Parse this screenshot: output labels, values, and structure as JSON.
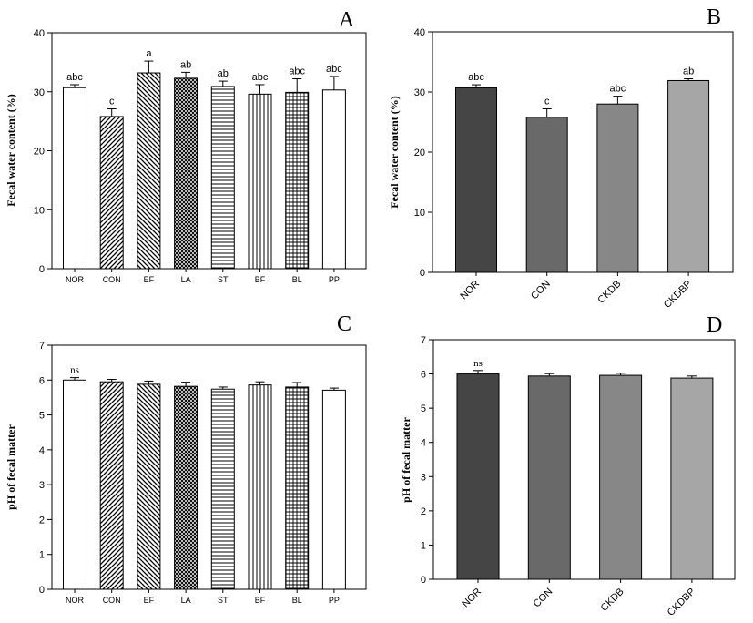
{
  "chart_data": [
    {
      "panel": "A",
      "type": "bar",
      "ylabel": "Fecal water content (%)",
      "ylim": [
        0,
        40
      ],
      "yticks": [
        0,
        10,
        20,
        30,
        40
      ],
      "categories": [
        "NOR",
        "CON",
        "EF",
        "LA",
        "ST",
        "BF",
        "BL",
        "PP"
      ],
      "values": [
        30.7,
        25.8,
        33.2,
        32.3,
        30.9,
        29.6,
        29.9,
        30.3
      ],
      "errors": [
        0.5,
        1.3,
        2.0,
        1.0,
        0.9,
        1.6,
        2.3,
        2.3
      ],
      "labels": [
        "abc",
        "c",
        "a",
        "ab",
        "ab",
        "abc",
        "abc",
        "abc"
      ],
      "patterns": [
        "white",
        "diag-right",
        "diag-left",
        "crosshatch",
        "horizontal",
        "vertical",
        "grid",
        "white"
      ]
    },
    {
      "panel": "B",
      "type": "bar",
      "ylabel": "Fecal water content (%)",
      "ylim": [
        0,
        40
      ],
      "yticks": [
        0,
        10,
        20,
        30,
        40
      ],
      "categories": [
        "NOR",
        "CON",
        "CKDB",
        "CKDBP"
      ],
      "values": [
        30.7,
        25.8,
        28.0,
        31.9
      ],
      "errors": [
        0.5,
        1.4,
        1.3,
        0.3
      ],
      "labels": [
        "abc",
        "c",
        "abc",
        "ab"
      ],
      "colors": [
        "#454545",
        "#696969",
        "#878787",
        "#a6a6a6"
      ]
    },
    {
      "panel": "C",
      "type": "bar",
      "ylabel": "pH of fecal matter",
      "ylim": [
        0,
        7
      ],
      "yticks": [
        0,
        1,
        2,
        3,
        4,
        5,
        6,
        7
      ],
      "categories": [
        "NOR",
        "CON",
        "EF",
        "LA",
        "ST",
        "BF",
        "BL",
        "PP"
      ],
      "values": [
        6.0,
        5.95,
        5.88,
        5.82,
        5.74,
        5.86,
        5.8,
        5.71
      ],
      "errors": [
        0.07,
        0.07,
        0.09,
        0.12,
        0.06,
        0.09,
        0.13,
        0.06
      ],
      "labels": [
        "ns",
        "",
        "",
        "",
        "",
        "",
        "",
        ""
      ],
      "patterns": [
        "white",
        "diag-right",
        "diag-left",
        "crosshatch",
        "horizontal",
        "vertical",
        "grid",
        "white"
      ]
    },
    {
      "panel": "D",
      "type": "bar",
      "ylabel": "pH of fecal matter",
      "ylim": [
        0,
        7
      ],
      "yticks": [
        0,
        1,
        2,
        3,
        4,
        5,
        6,
        7
      ],
      "categories": [
        "NOR",
        "CON",
        "CKDB",
        "CKDBP"
      ],
      "values": [
        6.0,
        5.94,
        5.96,
        5.88
      ],
      "errors": [
        0.1,
        0.07,
        0.06,
        0.06
      ],
      "labels": [
        "ns",
        "",
        "",
        ""
      ],
      "colors": [
        "#454545",
        "#696969",
        "#878787",
        "#a6a6a6"
      ]
    }
  ]
}
